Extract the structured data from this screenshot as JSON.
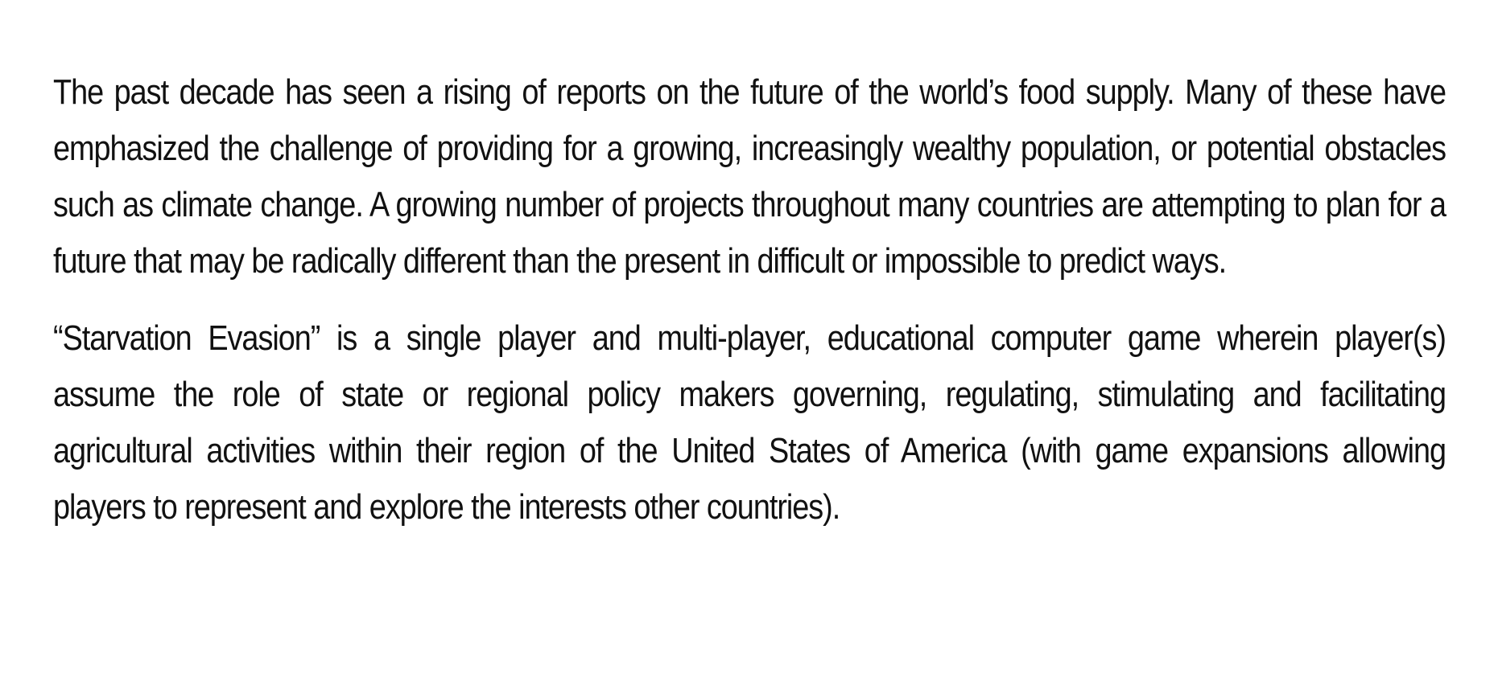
{
  "document": {
    "paragraphs": [
      "The past decade has seen a rising of reports on the future of the world’s food supply. Many of these have emphasized the challenge of providing for a growing, increasingly wealthy population, or potential obstacles such as climate change. A growing number of projects throughout many countries are attempting to plan for a future that may be radically different than the present in difficult or impossible to predict ways.",
      "“Starvation Evasion” is a single player and multi-player, educational computer game wherein player(s) assume the role of state or regional policy makers governing, regulating, stimulating and facilitating agricultural activities within their region of the United States of America (with game expansions allowing players to represent and explore the interests other countries)."
    ]
  }
}
